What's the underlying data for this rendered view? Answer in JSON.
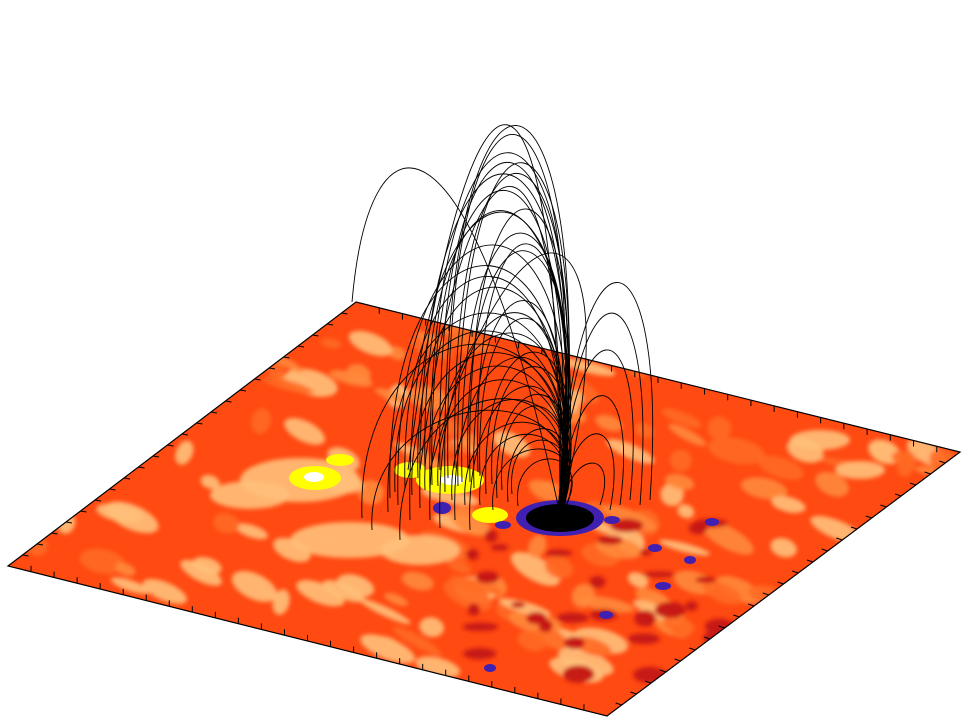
{
  "figure": {
    "kind": "3D magnetic field-line extrapolation over a magnetogram plane",
    "colors": {
      "background": "#ffffff",
      "field_lines": "#000000",
      "plane_base": "#ff4a12",
      "contour_low": "#ff6a22",
      "contour_mid": "#ff8a3a",
      "contour_pale": "#ffc07a",
      "positive_strong": "#ffff00",
      "positive_peak": "#ffffff",
      "negative_weak": "#c41414",
      "negative_mid": "#4020b0",
      "negative_strong": "#000000"
    },
    "legend": "none",
    "axis_labels": "none",
    "tick_labels": "none"
  }
}
